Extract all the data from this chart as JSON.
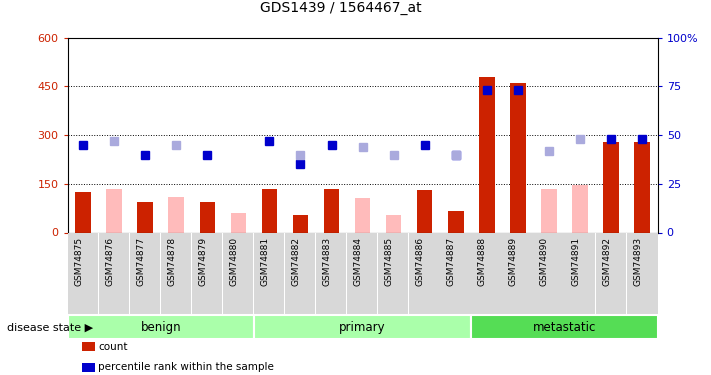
{
  "title": "GDS1439 / 1564467_at",
  "samples": [
    "GSM74875",
    "GSM74876",
    "GSM74877",
    "GSM74878",
    "GSM74879",
    "GSM74880",
    "GSM74881",
    "GSM74882",
    "GSM74883",
    "GSM74884",
    "GSM74885",
    "GSM74886",
    "GSM74887",
    "GSM74888",
    "GSM74889",
    "GSM74890",
    "GSM74891",
    "GSM74892",
    "GSM74893"
  ],
  "count_present": [
    125,
    0,
    95,
    0,
    95,
    0,
    135,
    55,
    135,
    0,
    50,
    130,
    65,
    480,
    460,
    0,
    0,
    280,
    280
  ],
  "count_absent": [
    0,
    135,
    0,
    110,
    0,
    60,
    0,
    0,
    0,
    105,
    55,
    0,
    0,
    0,
    0,
    135,
    145,
    0,
    0
  ],
  "pct_present": [
    45,
    0,
    40,
    0,
    40,
    0,
    47,
    35,
    45,
    0,
    0,
    45,
    40,
    73,
    73,
    0,
    0,
    48,
    48
  ],
  "pct_absent": [
    0,
    47,
    0,
    45,
    0,
    0,
    0,
    40,
    0,
    44,
    40,
    0,
    40,
    0,
    0,
    42,
    48,
    0,
    0
  ],
  "groups": [
    {
      "name": "benign",
      "start": 0,
      "end": 5,
      "color": "#aaffaa"
    },
    {
      "name": "primary",
      "start": 6,
      "end": 12,
      "color": "#aaffaa"
    },
    {
      "name": "metastatic",
      "start": 13,
      "end": 18,
      "color": "#55dd55"
    }
  ],
  "count_color": "#cc2200",
  "count_absent_color": "#ffbbbb",
  "pct_color": "#0000cc",
  "pct_absent_color": "#aaaadd",
  "ylim_left": [
    0,
    600
  ],
  "ylim_right": [
    0,
    100
  ],
  "yticks_left": [
    0,
    150,
    300,
    450,
    600
  ],
  "ytick_labels_left": [
    "0",
    "150",
    "300",
    "450",
    "600"
  ],
  "yticks_right": [
    0,
    25,
    50,
    75,
    100
  ],
  "ytick_labels_right": [
    "0",
    "25",
    "50",
    "75",
    "100%"
  ],
  "hlines": [
    150,
    300,
    450
  ],
  "bar_width": 0.5,
  "marker_size": 6
}
